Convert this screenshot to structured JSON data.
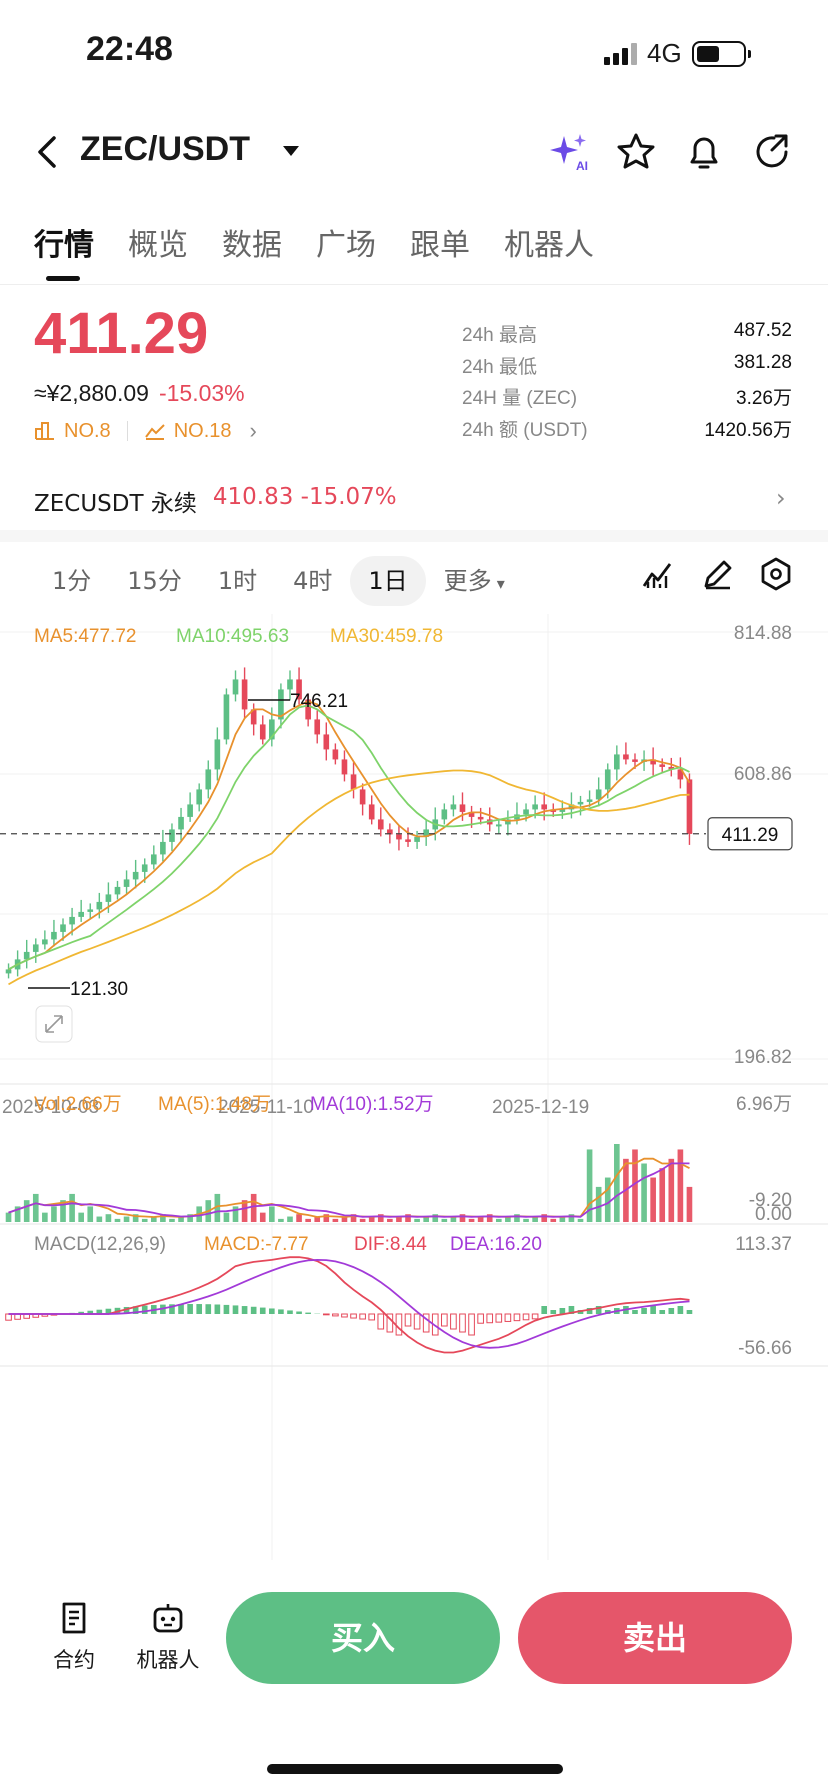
{
  "status_bar": {
    "time": "22:48",
    "network": "4G"
  },
  "header": {
    "pair": "ZEC/USDT"
  },
  "tabs": [
    "行情",
    "概览",
    "数据",
    "广场",
    "跟单",
    "机器人"
  ],
  "price": {
    "last": "411.29",
    "cny": "≈¥2,880.09",
    "change_pct": "-15.03%",
    "rank1": "NO.8",
    "rank2": "NO.18"
  },
  "stats": [
    {
      "label": "24h  最高",
      "value": "487.52"
    },
    {
      "label": "24h  最低",
      "value": "381.28"
    },
    {
      "label": "24H  量 (ZEC)",
      "value": "3.26万"
    },
    {
      "label": "24h  额 (USDT)",
      "value": "1420.56万"
    }
  ],
  "perp": {
    "label": "ZECUSDT 永续",
    "price": "410.83",
    "change": "-15.07%"
  },
  "intervals": [
    "1分",
    "15分",
    "1时",
    "4时",
    "1日",
    "更多"
  ],
  "chart_data": {
    "type": "candlestick",
    "price_axis": [
      "814.88",
      "608.86",
      "411.29",
      "196.82",
      "-9.20"
    ],
    "x_axis": [
      "2025-10-03",
      "2025-11-10",
      "2025-12-19"
    ],
    "ma_labels": {
      "ma5": "MA5:477.72",
      "ma10": "MA10:495.63",
      "ma30": "MA30:459.78"
    },
    "annotations": {
      "high": "746.21",
      "low": "121.30"
    },
    "current_price_tag": "411.29",
    "closes": [
      140,
      160,
      175,
      190,
      200,
      215,
      230,
      245,
      255,
      260,
      275,
      290,
      305,
      320,
      335,
      350,
      370,
      395,
      420,
      445,
      470,
      500,
      540,
      600,
      690,
      720,
      660,
      630,
      600,
      640,
      700,
      720,
      680,
      640,
      610,
      580,
      560,
      530,
      500,
      470,
      440,
      420,
      410,
      400,
      395,
      405,
      420,
      440,
      460,
      470,
      455,
      445,
      440,
      430,
      430,
      440,
      450,
      460,
      470,
      460,
      455,
      460,
      470,
      475,
      480,
      500,
      540,
      570,
      560,
      555,
      560,
      550,
      545,
      540,
      520,
      411
    ],
    "volume": {
      "vol": "Vol:2.66万",
      "ma5": "MA(5):1.48万",
      "ma10": "MA(10):1.52万",
      "axis_top": "6.96万",
      "axis_bottom": "0.00"
    },
    "macd": {
      "label": "MACD(12,26,9)",
      "macd": "MACD:-7.77",
      "dif": "DIF:8.44",
      "dea": "DEA:16.20",
      "axis_top": "113.37",
      "axis_bottom": "-56.66"
    }
  },
  "colors": {
    "up": "#5dbf85",
    "down": "#e5485a",
    "ma5": "#e8912d",
    "ma10": "#7ed36a",
    "ma30": "#f0b733"
  },
  "bottom": {
    "contract": "合约",
    "robot": "机器人",
    "buy": "买入",
    "sell": "卖出"
  }
}
